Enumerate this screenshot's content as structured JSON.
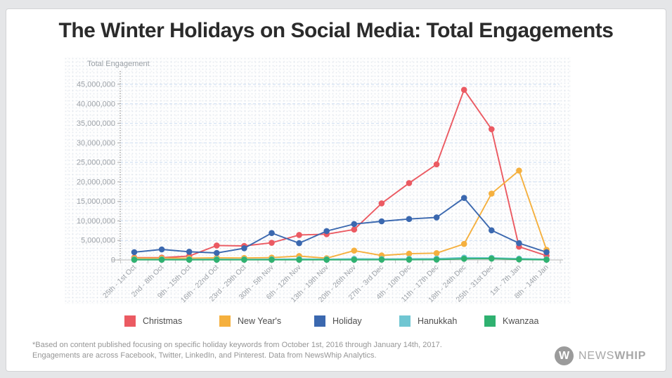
{
  "title": "The Winter Holidays on Social Media: Total Engagements",
  "chart_data": {
    "type": "line",
    "y_axis_title": "Total Engagement",
    "ylim": [
      0,
      45000000
    ],
    "y_tick_step": 5000000,
    "grid": "dashed horizontal",
    "legend_position": "bottom",
    "categories": [
      "25th - 1st Oct",
      "2nd - 8th Oct",
      "9th - 15th Oct",
      "16th - 22nd Oct",
      "23rd - 29th Oct",
      "30th - 5th Nov",
      "6th - 12th Nov",
      "13th - 19th Nov",
      "20th - 26th Nov",
      "27th - 3rd Dec",
      "4th - 10th Dec",
      "11th - 17th Dec",
      "18th - 24th Dec",
      "25th - 31st Dec",
      "1st - 7th Jan",
      "8th - 14th Jan"
    ],
    "series": [
      {
        "name": "Christmas",
        "color": "#EB5A62",
        "values": [
          600000,
          600000,
          1000000,
          3700000,
          3600000,
          4400000,
          6400000,
          6600000,
          7800000,
          14500000,
          19700000,
          24500000,
          43600000,
          33500000,
          3400000,
          1100000
        ]
      },
      {
        "name": "New Year's",
        "color": "#F5B03E",
        "values": [
          450000,
          450000,
          450000,
          550000,
          500000,
          600000,
          1000000,
          450000,
          2400000,
          1150000,
          1600000,
          1750000,
          4100000,
          17000000,
          22900000,
          2600000
        ]
      },
      {
        "name": "Holiday",
        "color": "#3B68AF",
        "values": [
          2000000,
          2700000,
          2100000,
          1800000,
          3000000,
          6900000,
          4300000,
          7400000,
          9200000,
          9900000,
          10500000,
          10900000,
          15900000,
          7600000,
          4300000,
          2000000
        ]
      },
      {
        "name": "Hanukkah",
        "color": "#70C6D2",
        "values": [
          150000,
          150000,
          150000,
          200000,
          150000,
          200000,
          250000,
          200000,
          300000,
          250000,
          300000,
          350000,
          600000,
          550000,
          350000,
          200000
        ]
      },
      {
        "name": "Kwanzaa",
        "color": "#2FB170",
        "values": [
          50000,
          50000,
          50000,
          50000,
          50000,
          50000,
          50000,
          50000,
          60000,
          80000,
          80000,
          100000,
          300000,
          350000,
          150000,
          50000
        ]
      }
    ]
  },
  "footnote": {
    "line1": "*Based on content published focusing on specific holiday keywords from October 1st, 2016 through January 14th, 2017.",
    "line2": "Engagements are across Facebook, Twitter, LinkedIn, and Pinterest. Data from NewsWhip Analytics."
  },
  "logo": {
    "initial": "W",
    "name_light": "NEWS",
    "name_bold": "WHIP"
  }
}
